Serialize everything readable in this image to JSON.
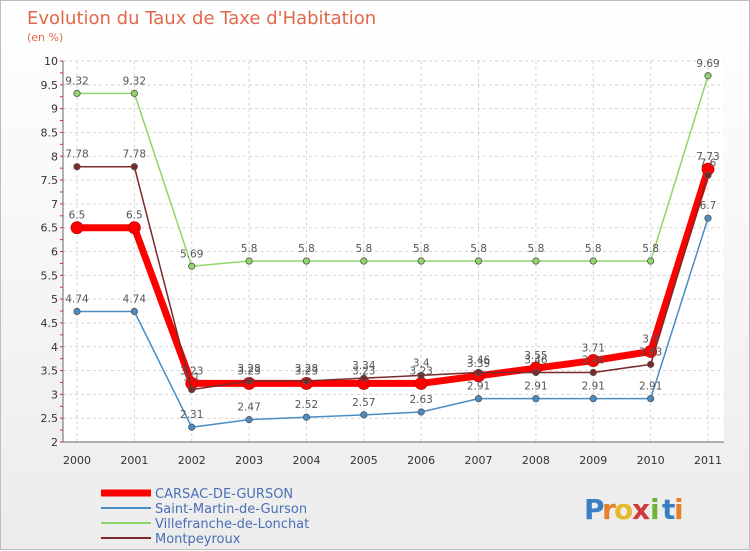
{
  "chart_data": {
    "type": "line",
    "title": "Evolution du Taux de Taxe d'Habitation",
    "subtitle": "(en %)",
    "x": [
      "2000",
      "2001",
      "2002",
      "2003",
      "2004",
      "2005",
      "2006",
      "2007",
      "2008",
      "2009",
      "2010",
      "2011"
    ],
    "ylim": [
      2,
      10
    ],
    "yticks": [
      "2",
      "2.5",
      "3",
      "3.5",
      "4",
      "4.5",
      "5",
      "5.5",
      "6",
      "6.5",
      "7",
      "7.5",
      "8",
      "8.5",
      "9",
      "9.5",
      "10"
    ],
    "grid": true,
    "legend_position": "bottom-left",
    "series": [
      {
        "name": "CARSAC-DE-GURSON",
        "color": "#ff0000",
        "width": 7,
        "values": [
          6.5,
          6.5,
          3.23,
          3.23,
          3.23,
          3.23,
          3.23,
          3.39,
          3.55,
          3.71,
          3.9,
          7.73
        ],
        "labels": [
          "6.5",
          "6.5",
          "3.23",
          "3.23",
          "3.23",
          "3.23",
          "3.23",
          "3.39",
          "3.55",
          "3.71",
          "3.9",
          "7.73"
        ]
      },
      {
        "name": "Saint-Martin-de-Gurson",
        "color": "#4a8cc4",
        "width": 1.5,
        "values": [
          4.74,
          4.74,
          2.31,
          2.47,
          2.52,
          2.57,
          2.63,
          2.91,
          2.91,
          2.91,
          2.91,
          6.7
        ],
        "labels": [
          "4.74",
          "4.74",
          "2.31",
          "2.47",
          "2.52",
          "2.57",
          "2.63",
          "2.91",
          "2.91",
          "2.91",
          "2.91",
          "6.7"
        ]
      },
      {
        "name": "Villefranche-de-Lonchat",
        "color": "#8fd66a",
        "width": 1.5,
        "values": [
          9.32,
          9.32,
          5.69,
          5.8,
          5.8,
          5.8,
          5.8,
          5.8,
          5.8,
          5.8,
          5.8,
          9.69
        ],
        "labels": [
          "9.32",
          "9.32",
          "5.69",
          "5.8",
          "5.8",
          "5.8",
          "5.8",
          "5.8",
          "5.8",
          "5.8",
          "5.8",
          "9.69"
        ]
      },
      {
        "name": "Montpeyroux",
        "color": "#7a2a2a",
        "width": 1.5,
        "values": [
          7.78,
          7.78,
          3.1,
          3.28,
          3.28,
          3.34,
          3.4,
          3.46,
          3.46,
          3.46,
          3.63,
          7.6
        ],
        "labels": [
          "7.78",
          "7.78",
          "3.1",
          "3.28",
          "3.28",
          "3.34",
          "3.4",
          "3.46",
          "3.46",
          "3.46",
          "3.63",
          "7.6"
        ]
      }
    ]
  },
  "brand": {
    "letters": [
      "P",
      "r",
      "o",
      "x",
      "i",
      "t",
      "i"
    ],
    "colors": [
      "#3a7fc4",
      "#e6812a",
      "#e6b82a",
      "#d23a3a",
      "#6fb33a",
      "#3a7fc4",
      "#e6812a"
    ]
  }
}
